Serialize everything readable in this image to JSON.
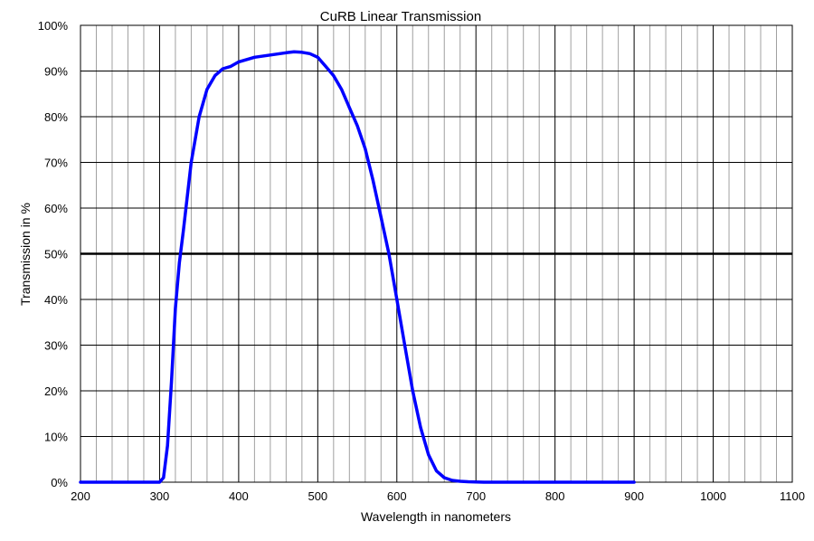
{
  "chart_data": {
    "type": "line",
    "title": "CuRB Linear Transmission",
    "xlabel": "Wavelength  in nanometers",
    "ylabel": "Transmission in %",
    "xlim": [
      200,
      1100
    ],
    "ylim": [
      0,
      100
    ],
    "x_major_ticks": [
      200,
      300,
      400,
      500,
      600,
      700,
      800,
      900,
      1000,
      1100
    ],
    "x_minor_step": 20,
    "y_major_ticks": [
      0,
      10,
      20,
      30,
      40,
      50,
      60,
      70,
      80,
      90,
      100
    ],
    "y_tick_suffix": "%",
    "grid": true,
    "reference_line": {
      "y": 50,
      "color": "#000000"
    },
    "series": [
      {
        "color": "#0000ff",
        "x": [
          200,
          300,
          305,
          310,
          315,
          320,
          325,
          330,
          340,
          350,
          360,
          370,
          380,
          390,
          400,
          420,
          440,
          460,
          470,
          480,
          490,
          500,
          510,
          520,
          530,
          540,
          550,
          560,
          570,
          580,
          590,
          600,
          610,
          620,
          630,
          640,
          650,
          660,
          670,
          680,
          690,
          700,
          710,
          720,
          800,
          900
        ],
        "y": [
          0,
          0,
          1,
          8,
          22,
          38,
          48,
          55,
          70,
          80,
          86,
          89,
          90.5,
          91,
          92,
          93,
          93.5,
          94,
          94.2,
          94.1,
          93.8,
          93,
          91,
          89,
          86,
          82,
          78,
          73,
          66,
          58,
          50,
          40,
          30,
          20,
          12,
          6,
          2.5,
          1,
          0.4,
          0.2,
          0.1,
          0.05,
          0,
          0,
          0,
          0
        ]
      }
    ]
  }
}
